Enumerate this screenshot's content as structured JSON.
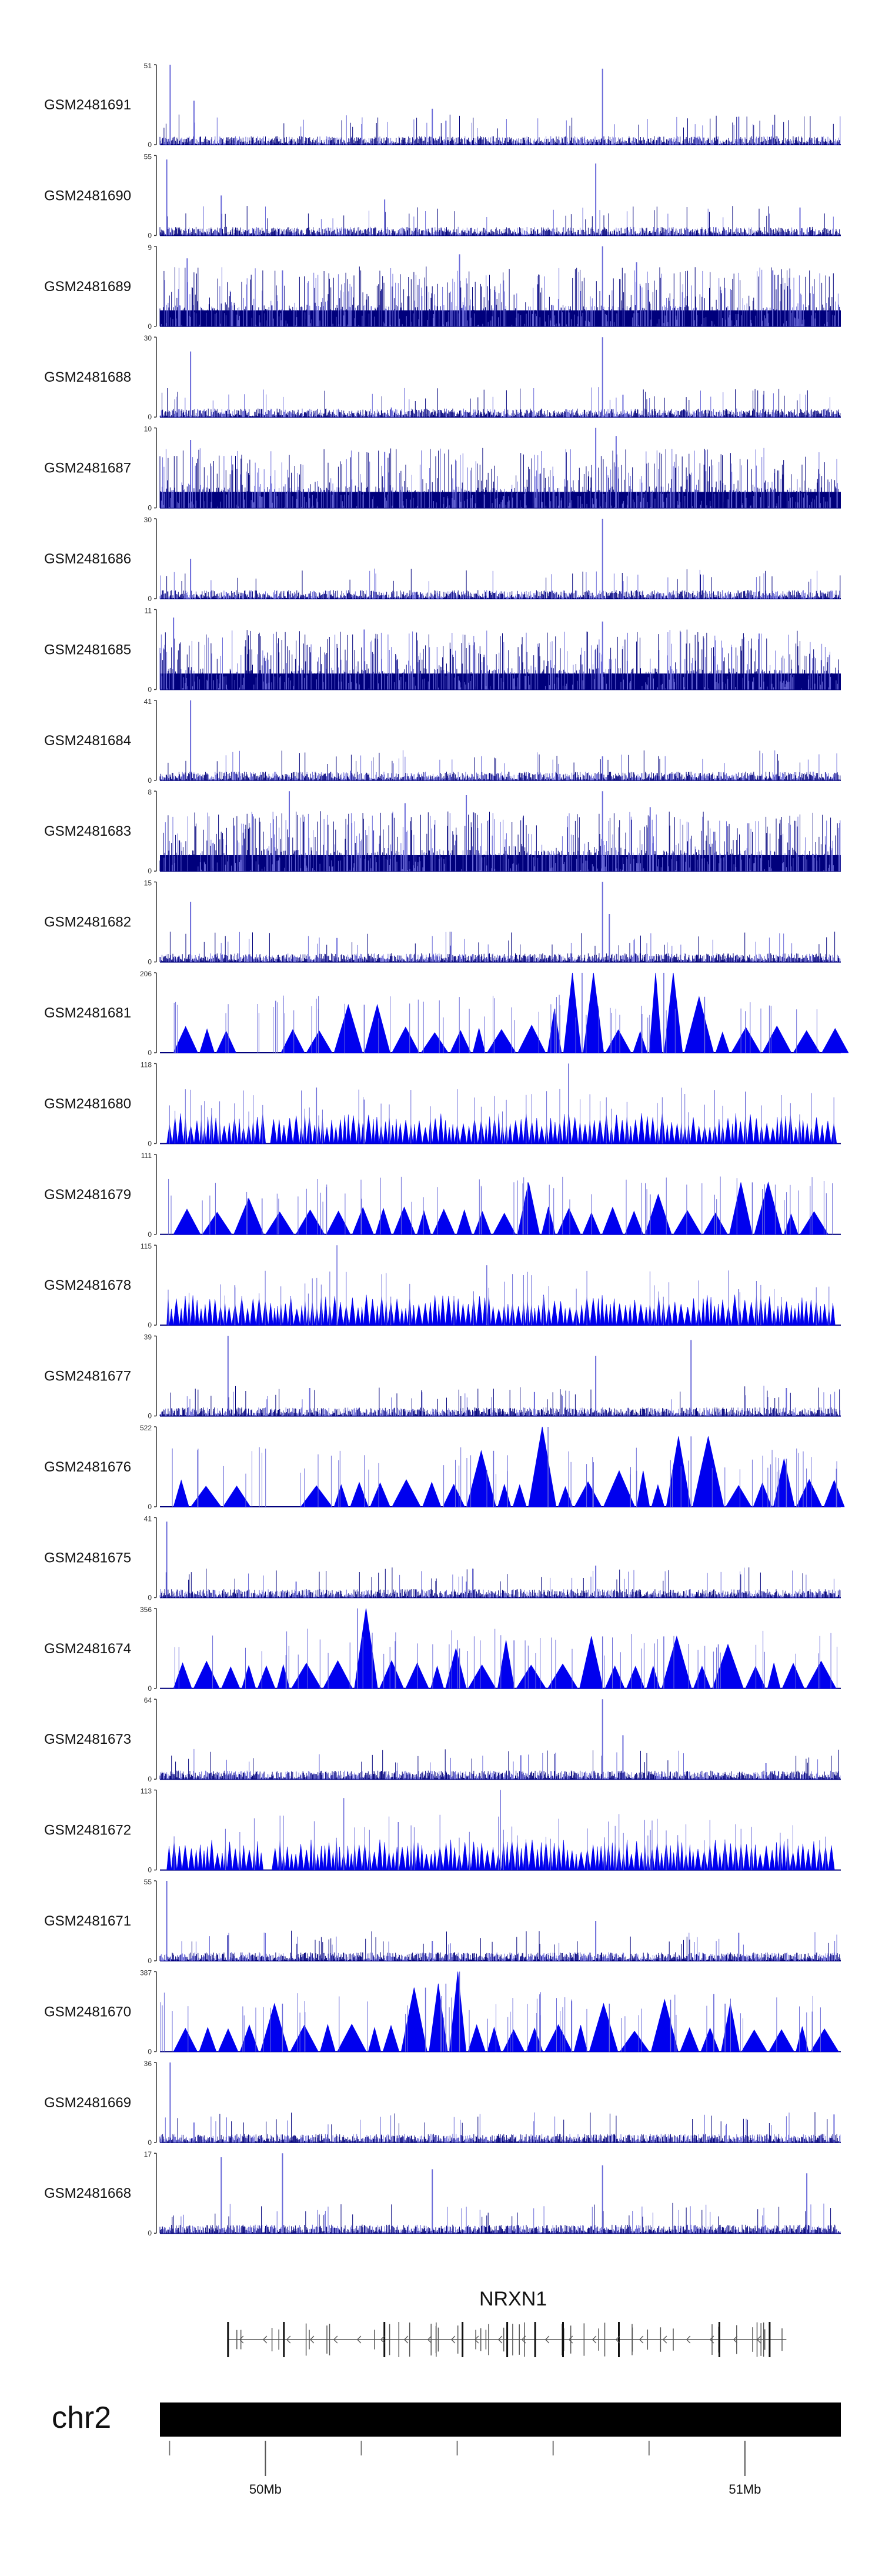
{
  "chart_data": {
    "type": "area",
    "title": "",
    "xlabel": "",
    "ylabel": "",
    "grid": false,
    "legend": "none",
    "tracks": [
      {
        "name": "GSM2481691",
        "ymin": 0,
        "ymax": 51,
        "style": "bars",
        "peaks": [
          [
            0.015,
            1.0
          ],
          [
            0.05,
            0.55
          ],
          [
            0.4,
            0.45
          ],
          [
            0.42,
            0.3
          ],
          [
            0.65,
            0.95
          ],
          [
            0.85,
            0.35
          ],
          [
            0.9,
            0.25
          ]
        ]
      },
      {
        "name": "GSM2481690",
        "ymin": 0,
        "ymax": 55,
        "style": "bars",
        "peaks": [
          [
            0.01,
            0.95
          ],
          [
            0.09,
            0.5
          ],
          [
            0.33,
            0.45
          ],
          [
            0.64,
            0.9
          ],
          [
            0.94,
            0.35
          ]
        ]
      },
      {
        "name": "GSM2481689",
        "ymin": 0,
        "ymax": 9,
        "style": "bars",
        "peaks": [
          [
            0.04,
            0.85
          ],
          [
            0.18,
            0.7
          ],
          [
            0.44,
            0.9
          ],
          [
            0.65,
            1.0
          ],
          [
            0.7,
            0.8
          ],
          [
            0.9,
            0.7
          ]
        ]
      },
      {
        "name": "GSM2481688",
        "ymin": 0,
        "ymax": 30,
        "style": "bars",
        "peaks": [
          [
            0.045,
            0.82
          ],
          [
            0.65,
            1.0
          ],
          [
            0.68,
            0.28
          ],
          [
            0.34,
            0.12
          ]
        ]
      },
      {
        "name": "GSM2481687",
        "ymin": 0,
        "ymax": 10,
        "style": "bars",
        "peaks": [
          [
            0.045,
            0.85
          ],
          [
            0.33,
            0.7
          ],
          [
            0.64,
            1.0
          ],
          [
            0.67,
            0.9
          ]
        ]
      },
      {
        "name": "GSM2481686",
        "ymin": 0,
        "ymax": 30,
        "style": "bars",
        "peaks": [
          [
            0.045,
            0.5
          ],
          [
            0.65,
            1.0
          ],
          [
            0.68,
            0.22
          ]
        ]
      },
      {
        "name": "GSM2481685",
        "ymin": 0,
        "ymax": 11,
        "style": "bars",
        "peaks": [
          [
            0.02,
            0.9
          ],
          [
            0.3,
            0.75
          ],
          [
            0.65,
            0.85
          ],
          [
            0.88,
            0.7
          ]
        ]
      },
      {
        "name": "GSM2481684",
        "ymin": 0,
        "ymax": 41,
        "style": "bars",
        "peaks": [
          [
            0.045,
            1.0
          ],
          [
            0.65,
            0.3
          ],
          [
            0.28,
            0.12
          ]
        ]
      },
      {
        "name": "GSM2481683",
        "ymin": 0,
        "ymax": 8,
        "style": "bars",
        "peaks": [
          [
            0.19,
            1.0
          ],
          [
            0.36,
            0.85
          ],
          [
            0.45,
            0.95
          ],
          [
            0.65,
            1.0
          ],
          [
            0.72,
            0.8
          ]
        ]
      },
      {
        "name": "GSM2481682",
        "ymin": 0,
        "ymax": 15,
        "style": "bars",
        "peaks": [
          [
            0.045,
            0.75
          ],
          [
            0.65,
            1.0
          ],
          [
            0.66,
            0.6
          ],
          [
            0.26,
            0.3
          ]
        ]
      },
      {
        "name": "GSM2481681",
        "ymin": 0,
        "ymax": 206,
        "style": "triangles",
        "gaps": [
          [
            0.15,
            0.16
          ]
        ],
        "peaks": [
          [
            0.62,
            1.0
          ],
          [
            0.74,
            1.0
          ],
          [
            0.8,
            0.7
          ],
          [
            0.17,
            0.65
          ],
          [
            0.3,
            0.6
          ],
          [
            0.58,
            0.55
          ]
        ]
      },
      {
        "name": "GSM2481680",
        "ymin": 0,
        "ymax": 118,
        "style": "spikes",
        "gaps": [
          [
            0.15,
            0.16
          ]
        ],
        "peaks": [
          [
            0.6,
            1.0
          ],
          [
            0.23,
            0.7
          ],
          [
            0.86,
            0.65
          ],
          [
            0.3,
            0.55
          ]
        ]
      },
      {
        "name": "GSM2481679",
        "ymin": 0,
        "ymax": 111,
        "style": "triangles",
        "gaps": [],
        "peaks": [
          [
            0.54,
            0.65
          ],
          [
            0.87,
            0.65
          ],
          [
            0.15,
            0.45
          ],
          [
            0.72,
            0.5
          ]
        ]
      },
      {
        "name": "GSM2481678",
        "ymin": 0,
        "ymax": 115,
        "style": "spikes",
        "gaps": [],
        "peaks": [
          [
            0.26,
            1.0
          ],
          [
            0.48,
            0.75
          ],
          [
            0.11,
            0.5
          ],
          [
            0.85,
            0.45
          ]
        ]
      },
      {
        "name": "GSM2481677",
        "ymin": 0,
        "ymax": 39,
        "style": "bars",
        "peaks": [
          [
            0.1,
            1.0
          ],
          [
            0.64,
            0.75
          ],
          [
            0.78,
            0.95
          ],
          [
            0.22,
            0.35
          ],
          [
            0.55,
            0.3
          ],
          [
            0.92,
            0.35
          ]
        ]
      },
      {
        "name": "GSM2481676",
        "ymin": 0,
        "ymax": 522,
        "style": "triangles",
        "gaps": [
          [
            0.16,
            0.2
          ]
        ],
        "peaks": [
          [
            0.57,
            1.0
          ],
          [
            0.49,
            0.7
          ],
          [
            0.78,
            0.88
          ],
          [
            0.7,
            0.45
          ],
          [
            0.92,
            0.6
          ]
        ]
      },
      {
        "name": "GSM2481675",
        "ymin": 0,
        "ymax": 41,
        "style": "bars",
        "peaks": [
          [
            0.01,
            0.95
          ],
          [
            0.64,
            0.4
          ],
          [
            0.2,
            0.2
          ],
          [
            0.45,
            0.2
          ]
        ]
      },
      {
        "name": "GSM2481674",
        "ymin": 0,
        "ymax": 356,
        "style": "triangles",
        "gaps": [
          [
            0.15,
            0.16
          ]
        ],
        "peaks": [
          [
            0.29,
            1.0
          ],
          [
            0.52,
            0.6
          ],
          [
            0.65,
            0.65
          ],
          [
            0.74,
            0.65
          ],
          [
            0.82,
            0.55
          ],
          [
            0.44,
            0.5
          ]
        ]
      },
      {
        "name": "GSM2481673",
        "ymin": 0,
        "ymax": 64,
        "style": "bars",
        "peaks": [
          [
            0.65,
            1.0
          ],
          [
            0.68,
            0.55
          ],
          [
            0.53,
            0.3
          ],
          [
            0.89,
            0.2
          ]
        ]
      },
      {
        "name": "GSM2481672",
        "ymin": 0,
        "ymax": 113,
        "style": "spikes",
        "gaps": [
          [
            0.15,
            0.16
          ]
        ],
        "peaks": [
          [
            0.5,
            1.0
          ],
          [
            0.27,
            0.9
          ],
          [
            0.35,
            0.6
          ],
          [
            0.72,
            0.5
          ]
        ]
      },
      {
        "name": "GSM2481671",
        "ymin": 0,
        "ymax": 55,
        "style": "bars",
        "peaks": [
          [
            0.01,
            1.0
          ],
          [
            0.64,
            0.5
          ],
          [
            0.85,
            0.35
          ],
          [
            0.4,
            0.25
          ]
        ]
      },
      {
        "name": "GSM2481670",
        "ymin": 0,
        "ymax": 387,
        "style": "triangles",
        "gaps": [],
        "peaks": [
          [
            0.44,
            1.0
          ],
          [
            0.42,
            0.85
          ],
          [
            0.39,
            0.8
          ],
          [
            0.18,
            0.6
          ],
          [
            0.66,
            0.6
          ],
          [
            0.75,
            0.65
          ],
          [
            0.83,
            0.6
          ]
        ]
      },
      {
        "name": "GSM2481669",
        "ymin": 0,
        "ymax": 36,
        "style": "bars",
        "peaks": [
          [
            0.015,
            1.0
          ],
          [
            0.05,
            0.25
          ],
          [
            0.99,
            0.35
          ]
        ]
      },
      {
        "name": "GSM2481668",
        "ymin": 0,
        "ymax": 17,
        "style": "bars",
        "peaks": [
          [
            0.09,
            0.95
          ],
          [
            0.18,
            1.0
          ],
          [
            0.4,
            0.8
          ],
          [
            0.65,
            0.85
          ],
          [
            0.95,
            0.75
          ]
        ]
      }
    ],
    "gene": {
      "name": "NRXN1",
      "strand": "-",
      "start_frac": 0.1,
      "end_frac": 0.92
    },
    "chromosome": {
      "name": "chr2"
    },
    "x_axis": {
      "range_mb": [
        49.78,
        51.2
      ],
      "major_ticks": [
        {
          "value_mb": 50.0,
          "label": "50Mb"
        },
        {
          "value_mb": 51.0,
          "label": "51Mb"
        }
      ],
      "minor_ticks_mb": [
        49.8,
        50.2,
        50.4,
        50.6,
        50.8
      ]
    },
    "colors": {
      "track_dark": "#00007c",
      "track_light": "#6a6ad9",
      "triangle": "#0000ee",
      "axis": "#333333",
      "gene": "#555555",
      "chrom": "#000000"
    }
  }
}
